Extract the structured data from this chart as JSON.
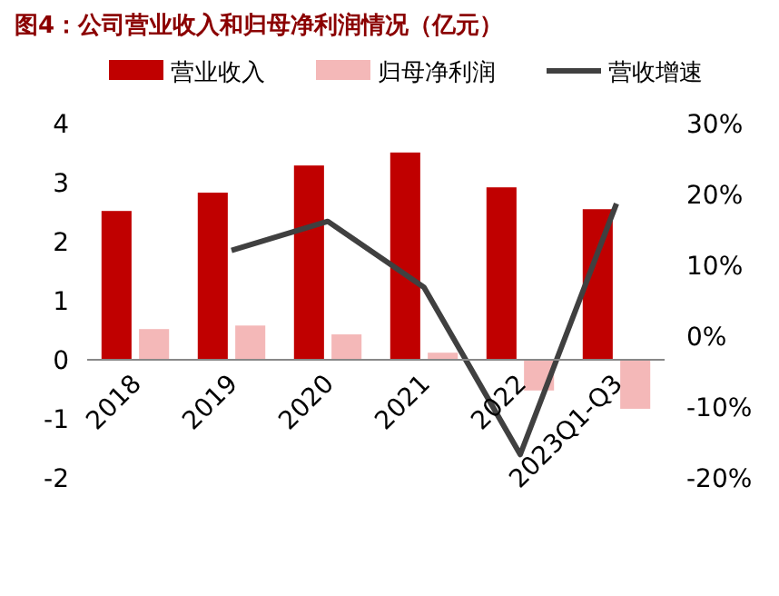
{
  "chart_data": {
    "type": "bar",
    "title": "图4：公司营业收入和归母净利润情况（亿元）",
    "categories": [
      "2018",
      "2019",
      "2020",
      "2021",
      "2022",
      "2023Q1-Q3"
    ],
    "series": [
      {
        "name": "营业收入",
        "color": "#c00000",
        "values": [
          2.52,
          2.83,
          3.29,
          3.51,
          2.92,
          2.55
        ]
      },
      {
        "name": "归母净利润",
        "color": "#f4b8b8",
        "values": [
          0.52,
          0.58,
          0.43,
          0.12,
          -0.52,
          -0.83
        ]
      },
      {
        "name": "营收增速",
        "type": "line",
        "axis": "y2",
        "color": "#404040",
        "values": [
          null,
          12.1,
          16.2,
          6.9,
          -16.7,
          18.7
        ]
      }
    ],
    "ylim": [
      -2,
      4
    ],
    "yticks": [
      -2,
      -1,
      0,
      1,
      2,
      3,
      4
    ],
    "y2lim": [
      -20,
      30
    ],
    "y2ticks": [
      {
        "value": -20,
        "label": "-20%"
      },
      {
        "value": -10,
        "label": "-10%"
      },
      {
        "value": 0,
        "label": "0%"
      },
      {
        "value": 10,
        "label": "10%"
      },
      {
        "value": 20,
        "label": "20%"
      },
      {
        "value": 30,
        "label": "30%"
      }
    ],
    "legend": "top",
    "grid": false
  }
}
